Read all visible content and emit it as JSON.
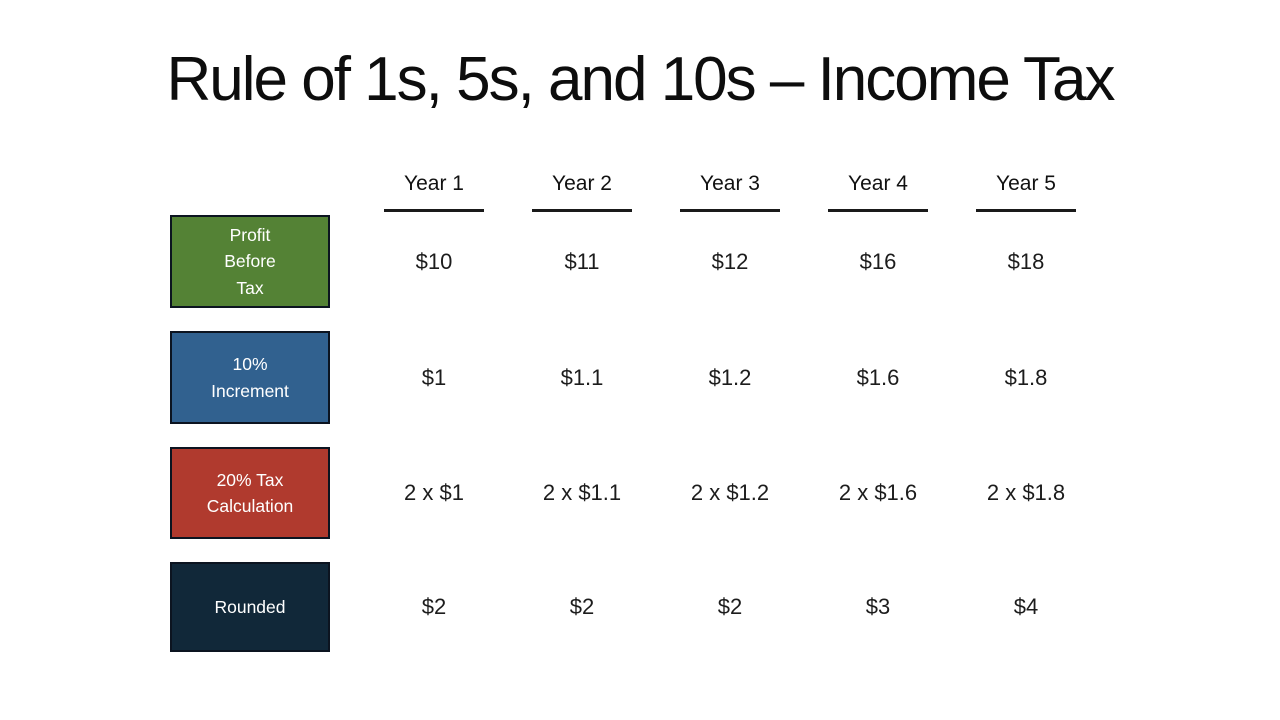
{
  "slide": {
    "title": "Rule of 1s, 5s, and 10s – Income Tax",
    "background_color": "#ffffff",
    "underline_color": "#1a1a1a"
  },
  "table": {
    "columns": [
      "Year 1",
      "Year 2",
      "Year 3",
      "Year 4",
      "Year 5"
    ],
    "rows": [
      {
        "label": "Profit\nBefore\nTax",
        "color": "#548235",
        "values": [
          "$10",
          "$11",
          "$12",
          "$16",
          "$18"
        ]
      },
      {
        "label": "10%\nIncrement",
        "color": "#31618F",
        "values": [
          "$1",
          "$1.1",
          "$1.2",
          "$1.6",
          "$1.8"
        ]
      },
      {
        "label": "20% Tax\nCalculation",
        "color": "#B03A2E",
        "values": [
          "2 x $1",
          "2 x $1.1",
          "2 x $1.2",
          "2 x $1.6",
          "2 x $1.8"
        ]
      },
      {
        "label": "Rounded",
        "color": "#112839",
        "values": [
          "$2",
          "$2",
          "$2",
          "$3",
          "$4"
        ]
      }
    ]
  }
}
